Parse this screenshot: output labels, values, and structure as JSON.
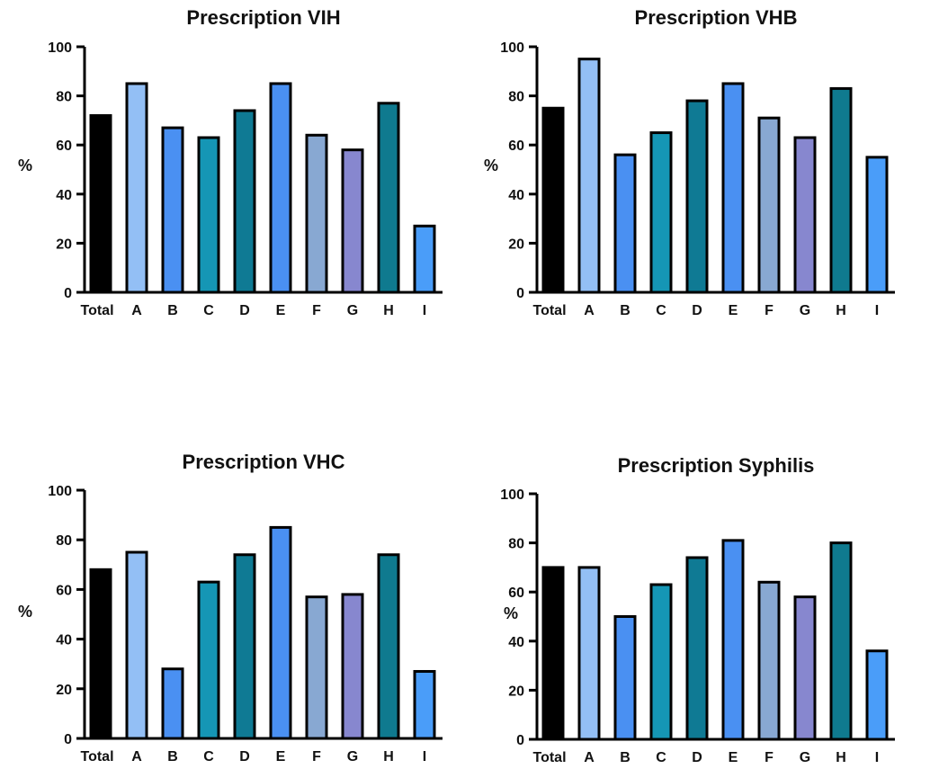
{
  "chart_data": [
    {
      "type": "bar",
      "title": "Prescription VIH",
      "ylabel": "%",
      "ylim": [
        0,
        100
      ],
      "yticks": [
        0,
        20,
        40,
        60,
        80,
        100
      ],
      "categories": [
        "Total",
        "A",
        "B",
        "C",
        "D",
        "E",
        "F",
        "G",
        "H",
        "I"
      ],
      "values": [
        72,
        85,
        67,
        63,
        74,
        85,
        64,
        58,
        77,
        27
      ]
    },
    {
      "type": "bar",
      "title": "Prescription VHB",
      "ylabel": "%",
      "ylim": [
        0,
        100
      ],
      "yticks": [
        0,
        20,
        40,
        60,
        80,
        100
      ],
      "categories": [
        "Total",
        "A",
        "B",
        "C",
        "D",
        "E",
        "F",
        "G",
        "H",
        "I"
      ],
      "values": [
        75,
        95,
        56,
        65,
        78,
        85,
        71,
        63,
        83,
        55
      ]
    },
    {
      "type": "bar",
      "title": "Prescription VHC",
      "ylabel": "%",
      "ylim": [
        0,
        100
      ],
      "yticks": [
        0,
        20,
        40,
        60,
        80,
        100
      ],
      "categories": [
        "Total",
        "A",
        "B",
        "C",
        "D",
        "E",
        "F",
        "G",
        "H",
        "I"
      ],
      "values": [
        68,
        75,
        28,
        63,
        74,
        85,
        57,
        58,
        74,
        27
      ]
    },
    {
      "type": "bar",
      "title": "Prescription Syphilis",
      "ylabel": "%",
      "ylim": [
        0,
        100
      ],
      "yticks": [
        0,
        20,
        40,
        60,
        80,
        100
      ],
      "categories": [
        "Total",
        "A",
        "B",
        "C",
        "D",
        "E",
        "F",
        "G",
        "H",
        "I"
      ],
      "values": [
        70,
        70,
        50,
        63,
        74,
        81,
        64,
        58,
        80,
        36
      ]
    }
  ],
  "bar_colors": [
    "#000000",
    "#93bff5",
    "#4a90f2",
    "#1596b5",
    "#0f7a94",
    "#4a90f2",
    "#88a8d2",
    "#8787cf",
    "#0f7a8f",
    "#4a9df9"
  ]
}
